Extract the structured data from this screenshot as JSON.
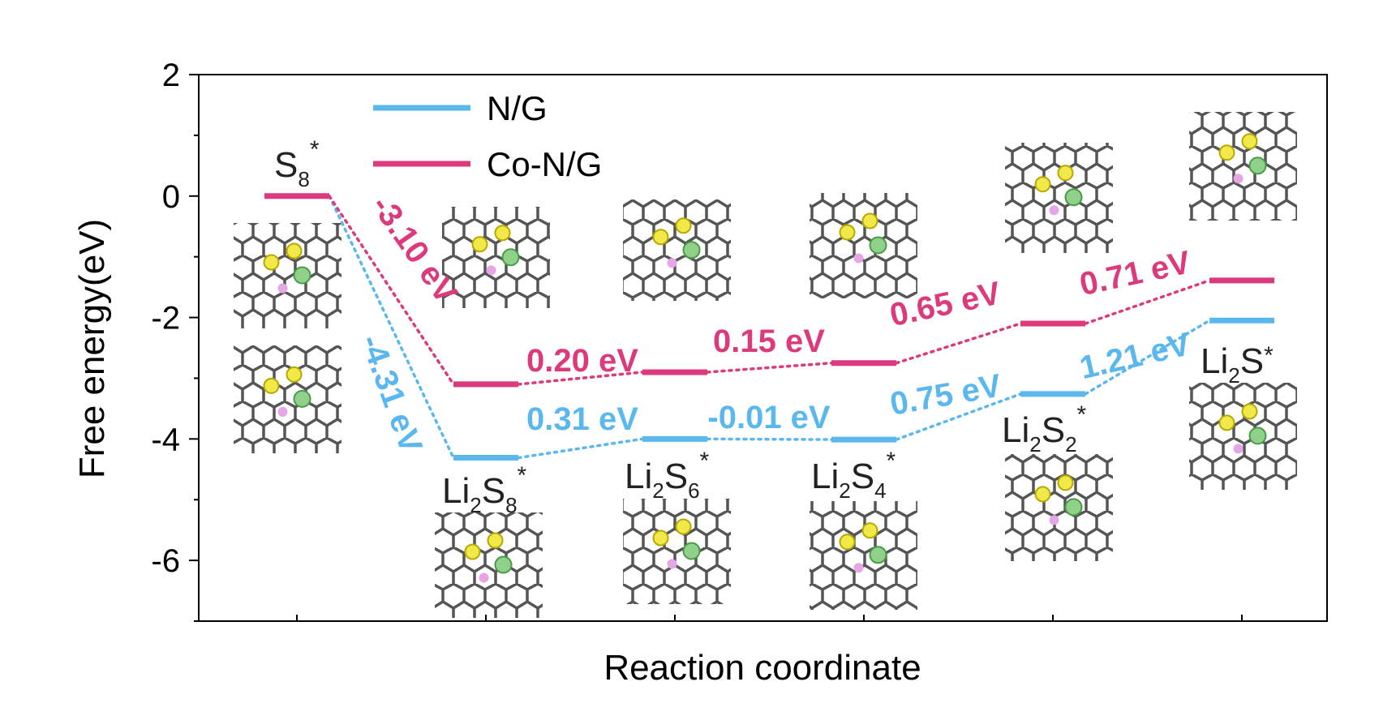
{
  "chart_data": {
    "type": "line",
    "xlabel": "Reaction coordinate",
    "ylabel": "Free energy(eV)",
    "ylim": [
      -7,
      2
    ],
    "yticks": [
      "2",
      "0",
      "-2",
      "-4",
      "-6"
    ],
    "categories": [
      {
        "base": "S",
        "sub": "8",
        "tail": "",
        "sub2": "",
        "star": "*"
      },
      {
        "base": "Li",
        "sub": "2",
        "tail": "S",
        "sub2": "8",
        "star": "*"
      },
      {
        "base": "Li",
        "sub": "2",
        "tail": "S",
        "sub2": "6",
        "star": "*"
      },
      {
        "base": "Li",
        "sub": "2",
        "tail": "S",
        "sub2": "4",
        "star": "*"
      },
      {
        "base": "Li",
        "sub": "2",
        "tail": "S",
        "sub2": "2",
        "star": "*"
      },
      {
        "base": "Li",
        "sub": "2",
        "tail": "S",
        "sub2": "",
        "star": "*"
      }
    ],
    "series": [
      {
        "name": "N/G",
        "color": "#5bb8ef",
        "values": [
          0.0,
          -4.31,
          -4.0,
          -4.01,
          -3.26,
          -2.05
        ],
        "step_labels": [
          "-4.31 eV",
          "0.31 eV",
          "-0.01 eV",
          "0.75 eV",
          "1.21 eV"
        ]
      },
      {
        "name": "Co-N/G",
        "color": "#dc3a7c",
        "values": [
          0.0,
          -3.1,
          -2.9,
          -2.75,
          -2.1,
          -1.39
        ],
        "step_labels": [
          "-3.10 eV",
          "0.20 eV",
          "0.15 eV",
          "0.65 eV",
          "0.71 eV"
        ]
      }
    ],
    "legend": "top-left",
    "grid": false
  }
}
